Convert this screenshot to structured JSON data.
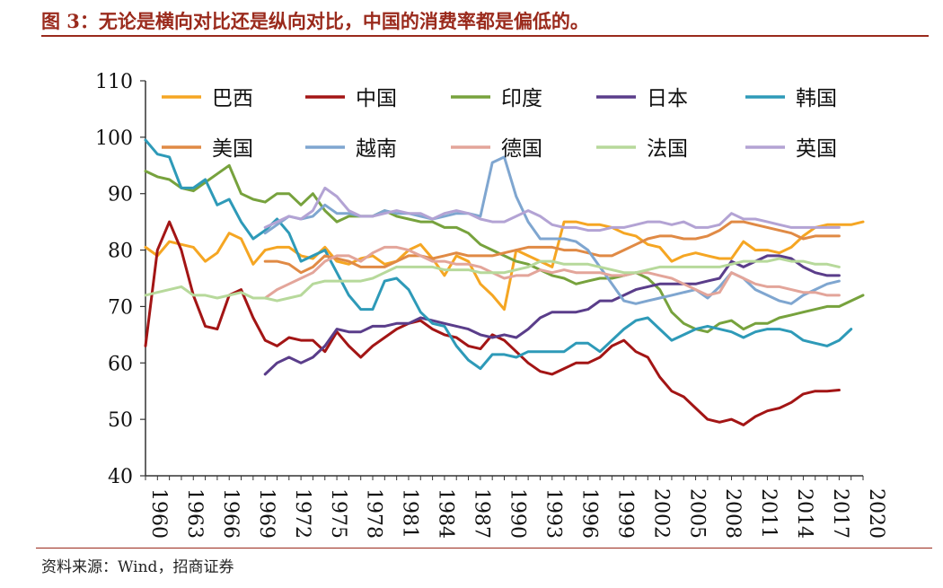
{
  "figure_title": "图 3：无论是横向对比还是纵向对比，中国的消费率都是偏低的。",
  "source": "资料来源：Wind，招商证券",
  "chart_data": {
    "type": "line",
    "title": "",
    "xlabel": "",
    "ylabel": "",
    "xlim": [
      1960,
      2020
    ],
    "ylim": [
      40,
      110
    ],
    "y_ticks": [
      40,
      50,
      60,
      70,
      80,
      90,
      100,
      110
    ],
    "x_ticks": [
      1960,
      1963,
      1966,
      1969,
      1972,
      1975,
      1978,
      1981,
      1984,
      1987,
      1990,
      1993,
      1996,
      1999,
      2002,
      2005,
      2008,
      2011,
      2014,
      2017,
      2020
    ],
    "grid": false,
    "legend_position": "top (inside plot area)",
    "series": [
      {
        "name": "巴西",
        "color": "#f5a623",
        "start": 1960,
        "values": [
          80.5,
          79,
          81.5,
          81,
          80.5,
          78,
          79.5,
          83,
          82,
          77.5,
          80,
          80.5,
          80.5,
          79,
          78.5,
          80.5,
          78,
          77.5,
          78.5,
          79,
          77.5,
          78,
          80,
          81,
          78.5,
          75.5,
          79,
          78,
          74,
          72,
          69.5,
          80,
          79,
          78,
          77,
          85,
          85,
          84.5,
          84.5,
          84,
          83,
          82.5,
          81,
          80.5,
          78,
          79,
          79.5,
          79,
          78.5,
          78.5,
          81.5,
          80,
          80,
          79.5,
          80.5,
          82.5,
          84,
          84.5,
          84.5,
          84.5,
          85
        ]
      },
      {
        "name": "中国",
        "color": "#a31515",
        "start": 1960,
        "values": [
          63,
          80,
          85,
          80,
          72,
          66.5,
          66,
          72,
          73,
          68,
          64,
          63,
          64.5,
          64,
          64,
          62,
          65.5,
          63,
          61,
          63,
          64.5,
          66,
          67,
          67.5,
          66,
          65,
          64.5,
          63,
          62.5,
          65,
          64,
          62,
          60,
          58.5,
          58,
          59,
          60,
          60,
          61,
          63,
          64,
          62,
          61,
          57.5,
          55,
          54,
          52,
          50,
          49.5,
          50,
          49,
          50.5,
          51.5,
          52,
          53,
          54.5,
          55,
          55,
          55.2
        ]
      },
      {
        "name": "印度",
        "color": "#77a23d",
        "start": 1960,
        "values": [
          94,
          93,
          92.5,
          91,
          90.5,
          92,
          93.5,
          95,
          90,
          89,
          88.5,
          90,
          90,
          88,
          90,
          87,
          85,
          86,
          86,
          86,
          87,
          86,
          85.5,
          85,
          85,
          84,
          84,
          83,
          81,
          80,
          79,
          78,
          77.5,
          76.5,
          75.5,
          75,
          74,
          74.5,
          75,
          75,
          75.5,
          76,
          75,
          73,
          69,
          67,
          66,
          65.5,
          67,
          67.5,
          66,
          67,
          67,
          68,
          68.5,
          69,
          69.5,
          70,
          70,
          71,
          72
        ]
      },
      {
        "name": "日本",
        "color": "#5a3d8a",
        "start": 1970,
        "values": [
          58,
          60,
          61,
          60,
          61,
          63,
          66,
          65.5,
          65.5,
          66.5,
          66.5,
          67,
          67,
          68,
          67.5,
          67,
          66.5,
          66,
          65,
          64.5,
          65,
          64.5,
          66,
          68,
          69,
          69,
          69,
          69.5,
          71,
          71,
          72,
          73,
          73.5,
          74,
          74,
          74,
          74,
          74.5,
          75,
          78,
          77,
          78,
          79,
          79,
          78.5,
          77,
          76,
          75.5,
          75.5
        ]
      },
      {
        "name": "韩国",
        "color": "#2e9ab8",
        "start": 1960,
        "values": [
          99.5,
          97,
          96.5,
          91,
          91,
          92.5,
          88,
          89,
          85,
          82,
          83.5,
          85.5,
          83,
          78,
          79,
          80,
          76,
          72,
          69.5,
          69.5,
          74.5,
          75,
          73,
          69,
          67,
          66.5,
          63,
          60.5,
          59,
          61.5,
          61.5,
          61,
          62,
          62,
          62,
          62,
          63.5,
          63.5,
          62,
          64,
          66,
          67.5,
          68,
          66,
          64,
          65,
          66,
          66.5,
          66,
          65.5,
          64.5,
          65.5,
          66,
          66,
          65.5,
          64,
          63.5,
          63,
          64,
          66
        ]
      },
      {
        "name": "美国",
        "color": "#e08a45",
        "start": 1970,
        "values": [
          78,
          78,
          77.5,
          76,
          77,
          79,
          78.5,
          78,
          77,
          77,
          77,
          78,
          79,
          79,
          78.5,
          79,
          79.5,
          79,
          79,
          79,
          79.5,
          80,
          80.5,
          80.5,
          80.5,
          80,
          80,
          79.5,
          79,
          79,
          80,
          81,
          82,
          82.5,
          82.5,
          82,
          82,
          82.5,
          83.5,
          85,
          85,
          84.5,
          84,
          83.5,
          83,
          82,
          82.5,
          82.5,
          82.5
        ]
      },
      {
        "name": "越南",
        "color": "#7fa6d0",
        "start": 1970,
        "values": [
          83,
          84.5,
          86,
          85.5,
          86,
          88,
          86.5,
          86.5,
          86,
          86,
          87,
          86.5,
          86.5,
          86,
          85.5,
          86,
          86.5,
          86.5,
          86,
          95.5,
          96.5,
          89.5,
          85,
          82,
          82,
          82,
          81.5,
          80,
          77,
          74,
          71,
          70.5,
          71,
          71.5,
          72,
          72.5,
          73,
          71.5,
          73.5,
          76,
          75,
          73,
          72,
          71,
          70.5,
          72,
          73,
          74,
          74.5
        ]
      },
      {
        "name": "德国",
        "color": "#e3a59a",
        "start": 1970,
        "values": [
          71.5,
          73,
          74,
          75,
          76,
          78,
          79,
          79,
          78,
          79.5,
          80.5,
          80.5,
          80,
          79,
          78,
          78,
          77.5,
          77.5,
          77,
          76,
          75,
          75.5,
          75.5,
          76.5,
          76,
          76.5,
          76,
          76,
          76,
          75.5,
          75.5,
          76,
          76,
          75.5,
          75,
          74,
          73,
          72,
          72.5,
          76,
          75,
          74,
          73.5,
          73.5,
          73,
          72.5,
          72.5,
          72,
          72
        ]
      },
      {
        "name": "法国",
        "color": "#b7d99b",
        "start": 1960,
        "values": [
          72,
          72.5,
          73,
          73.5,
          72,
          72,
          71.5,
          72,
          72.5,
          71.5,
          71.5,
          71,
          71.5,
          72,
          74,
          74.5,
          74.5,
          74.5,
          74.5,
          75,
          76,
          77,
          77,
          77,
          77,
          76.5,
          76.5,
          76.5,
          76,
          76,
          76,
          76.5,
          77,
          78,
          78,
          77.5,
          77.5,
          77.5,
          77,
          76.5,
          76,
          76,
          76.5,
          77,
          77,
          77,
          77,
          77,
          77,
          77.5,
          78,
          78,
          78,
          78.5,
          78,
          78,
          77.5,
          77.5,
          77
        ]
      },
      {
        "name": "英国",
        "color": "#b3a3d4",
        "start": 1970,
        "values": [
          84,
          85,
          86,
          85.5,
          87,
          91,
          89.5,
          87,
          86,
          86,
          86.5,
          87,
          86.5,
          86.5,
          85.5,
          86.5,
          87,
          86.5,
          85.5,
          85,
          85,
          86,
          87,
          86,
          84.5,
          84,
          84,
          83.5,
          83.5,
          84,
          84,
          84.5,
          85,
          85,
          84.5,
          85,
          84,
          84,
          84.5,
          86.5,
          85.5,
          85.5,
          85,
          84.5,
          84,
          84,
          84,
          84,
          84
        ]
      }
    ]
  }
}
